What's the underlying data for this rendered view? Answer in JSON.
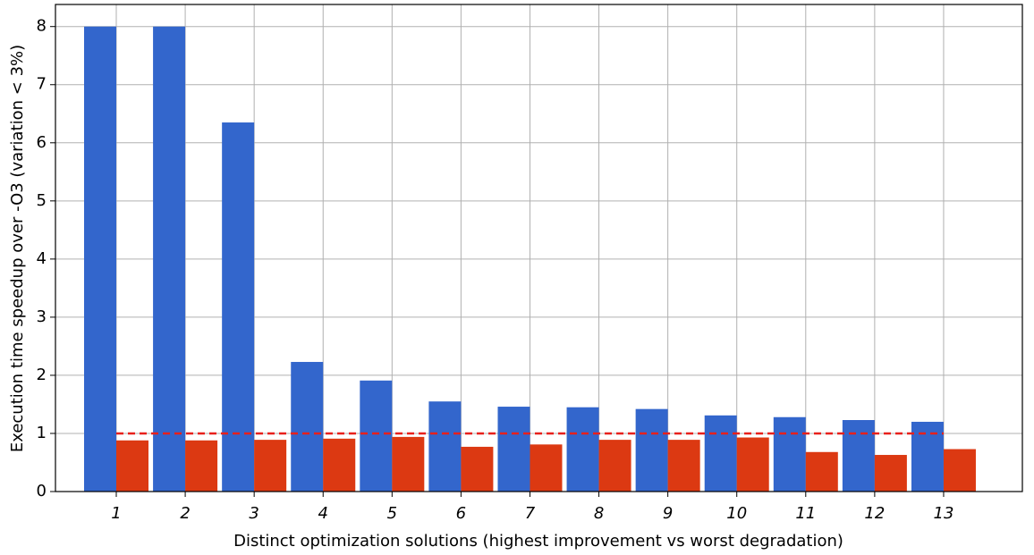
{
  "chart_data": {
    "type": "bar",
    "xlabel": "Distinct optimization solutions (highest improvement vs worst degradation)",
    "ylabel": "Execution time speedup over -O3 (variation < 3%)",
    "categories": [
      "1",
      "2",
      "3",
      "4",
      "5",
      "6",
      "7",
      "8",
      "9",
      "10",
      "11",
      "12",
      "13"
    ],
    "series": [
      {
        "color": "#3366cc",
        "values": [
          8.0,
          8.0,
          6.35,
          2.23,
          1.91,
          1.55,
          1.46,
          1.45,
          1.42,
          1.31,
          1.28,
          1.23,
          1.2
        ]
      },
      {
        "color": "#dc3912",
        "values": [
          0.88,
          0.88,
          0.89,
          0.91,
          0.94,
          0.77,
          0.81,
          0.89,
          0.89,
          0.93,
          0.68,
          0.63,
          0.73
        ]
      }
    ],
    "reference_line": {
      "value": 1,
      "color": "#e8201a",
      "style": "dashed"
    },
    "ylim": [
      0,
      8.38
    ],
    "yticks": [
      0,
      1,
      2,
      3,
      4,
      5,
      6,
      7,
      8
    ],
    "grid": true
  }
}
